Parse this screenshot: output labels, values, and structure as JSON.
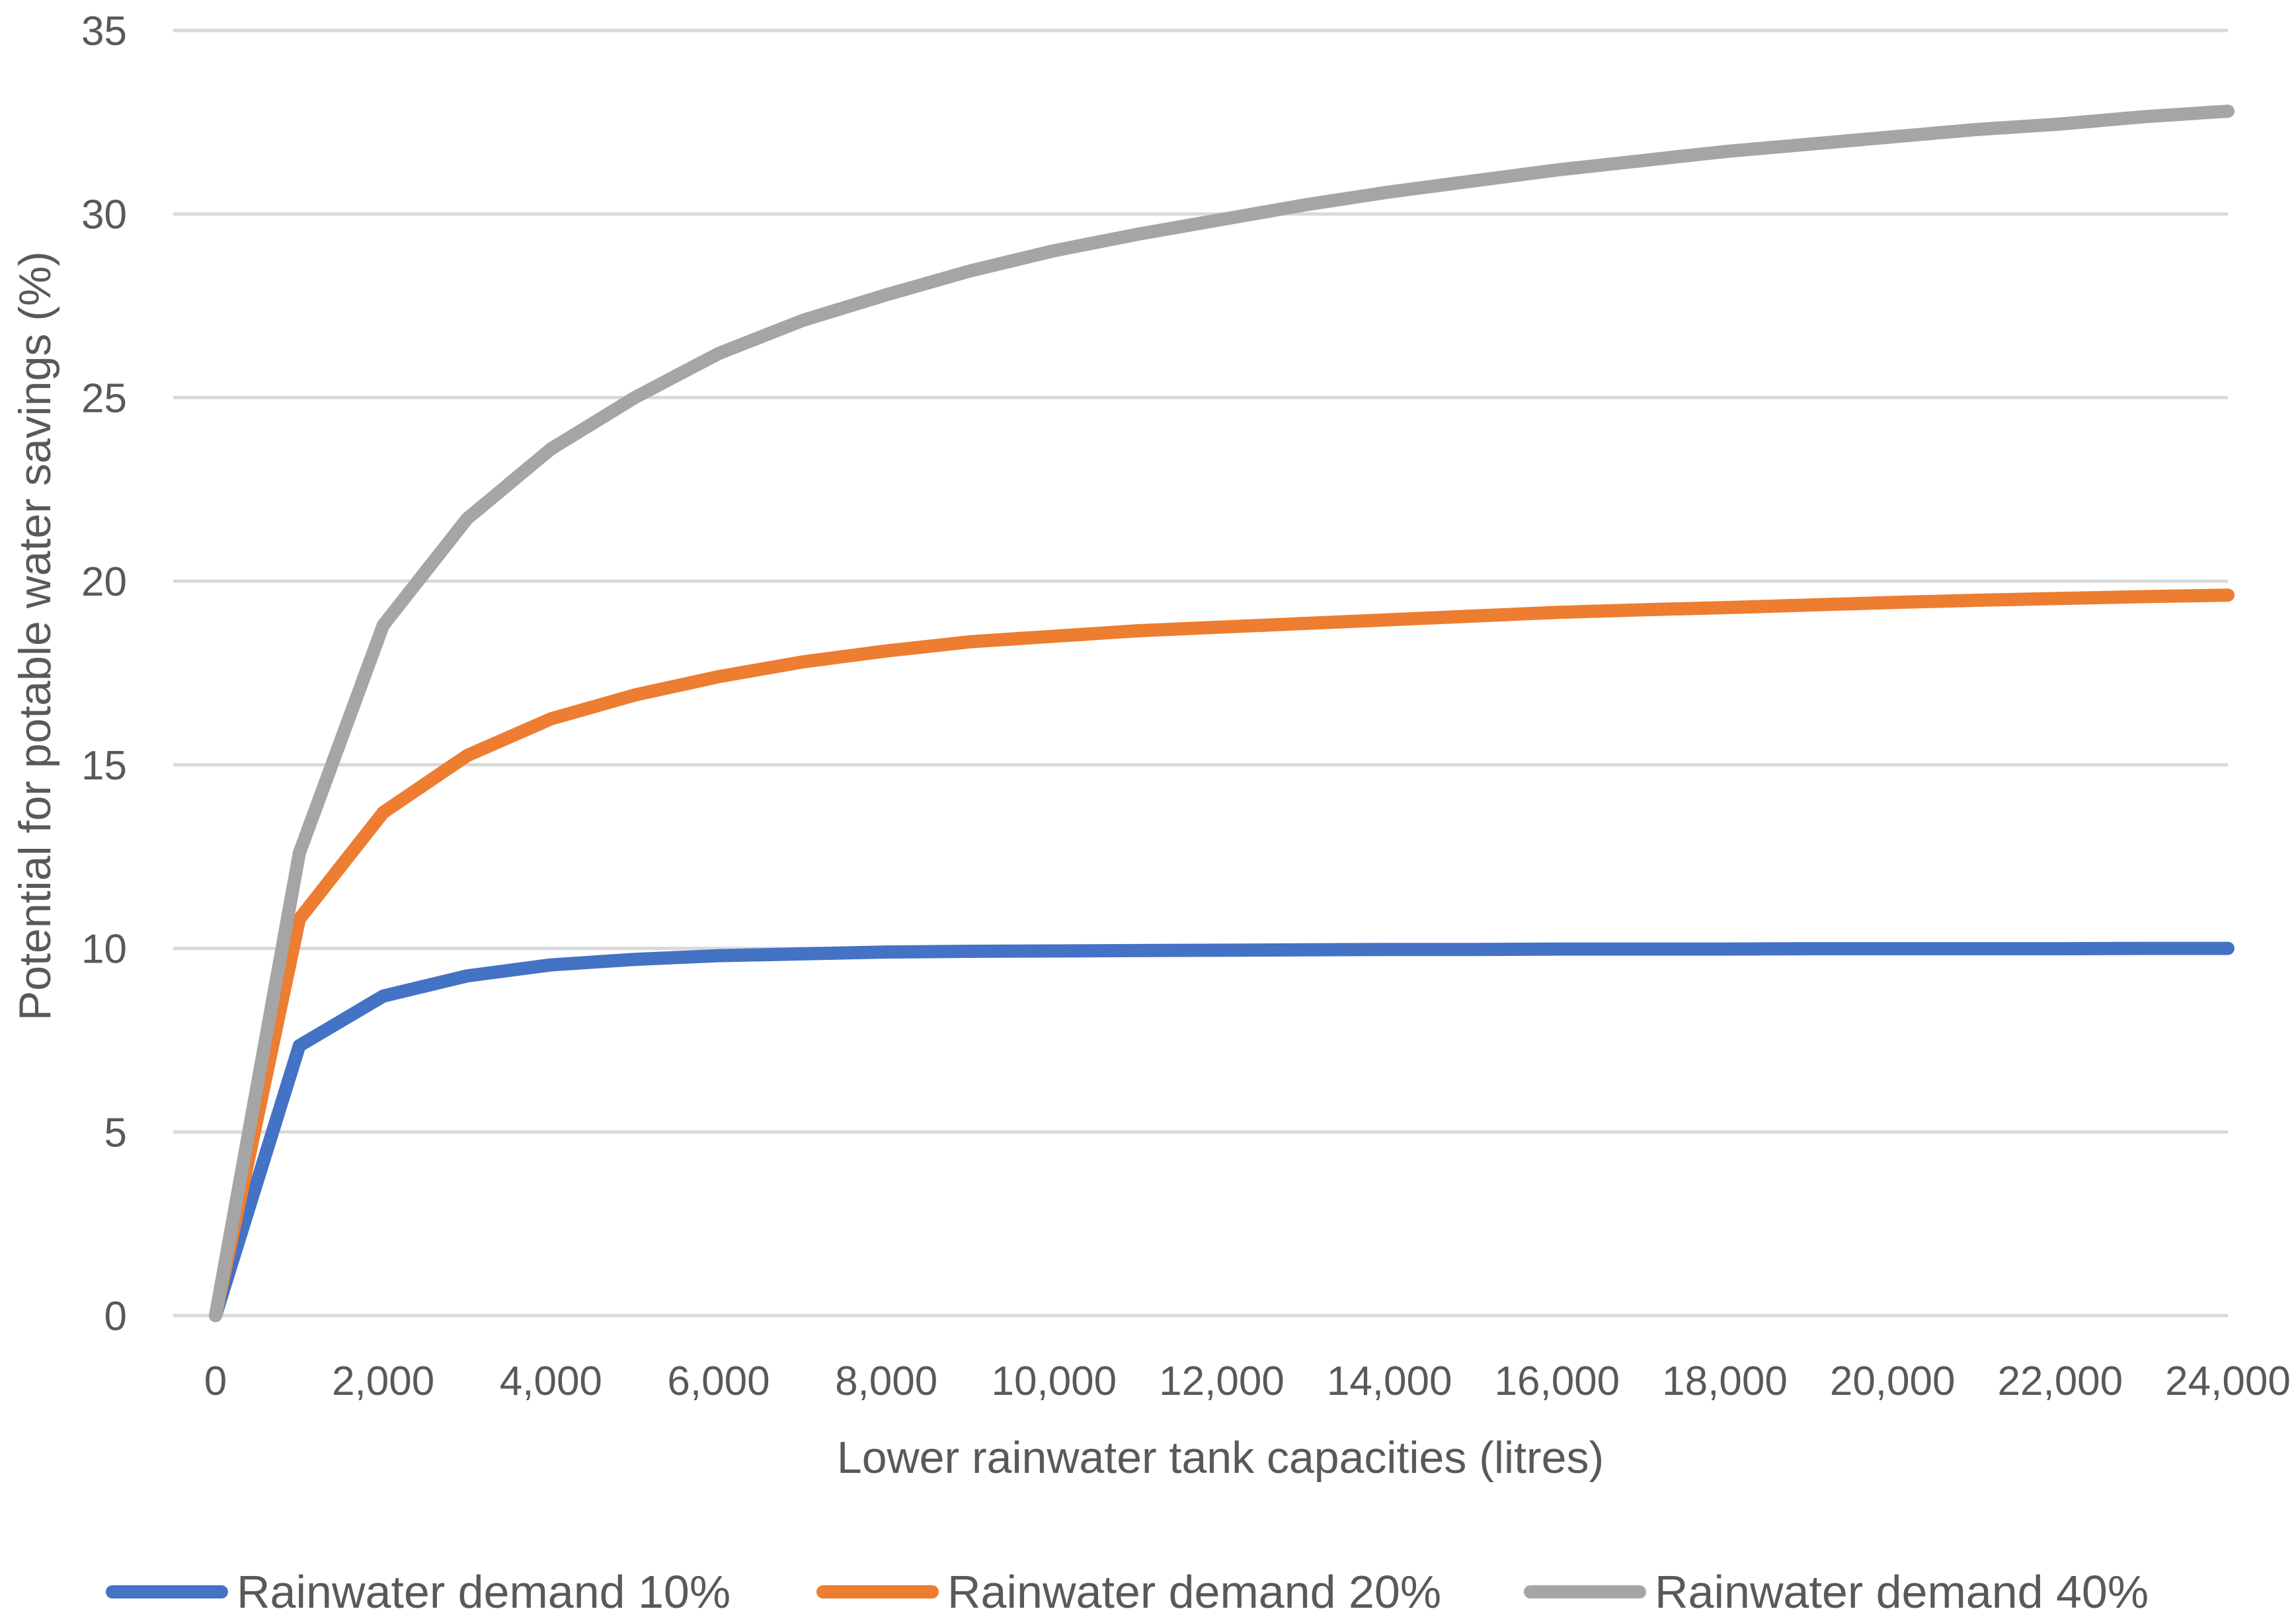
{
  "chart_data": {
    "type": "line",
    "title": "",
    "xlabel": "Lower rainwater tank capacities (litres)",
    "ylabel": "Potential for potable water savings (%)",
    "xlim": [
      0,
      24000
    ],
    "ylim": [
      0,
      35
    ],
    "x_ticks": [
      0,
      2000,
      4000,
      6000,
      8000,
      10000,
      12000,
      14000,
      16000,
      18000,
      20000,
      22000,
      24000
    ],
    "x_tick_labels": [
      "0",
      "2,000",
      "4,000",
      "6,000",
      "8,000",
      "10,000",
      "12,000",
      "14,000",
      "16,000",
      "18,000",
      "20,000",
      "22,000",
      "24,000"
    ],
    "y_ticks": [
      0,
      5,
      10,
      15,
      20,
      25,
      30,
      35
    ],
    "y_tick_labels": [
      "0",
      "5",
      "10",
      "15",
      "20",
      "25",
      "30",
      "35"
    ],
    "grid": true,
    "legend_position": "bottom",
    "x": [
      0,
      1000,
      2000,
      3000,
      4000,
      5000,
      6000,
      7000,
      8000,
      9000,
      10000,
      11000,
      12000,
      13000,
      14000,
      15000,
      16000,
      17000,
      18000,
      19000,
      20000,
      21000,
      22000,
      23000,
      24000
    ],
    "series": [
      {
        "name": "Rainwater demand 10%",
        "color": "#4472c4",
        "values": [
          0,
          7.35,
          8.7,
          9.25,
          9.55,
          9.7,
          9.8,
          9.85,
          9.9,
          9.92,
          9.93,
          9.94,
          9.95,
          9.96,
          9.97,
          9.97,
          9.98,
          9.98,
          9.98,
          9.99,
          9.99,
          9.99,
          9.99,
          10.0,
          10.0
        ]
      },
      {
        "name": "Rainwater demand 20%",
        "color": "#ed7d31",
        "values": [
          0,
          10.8,
          13.7,
          15.25,
          16.25,
          16.9,
          17.4,
          17.8,
          18.1,
          18.35,
          18.5,
          18.65,
          18.75,
          18.85,
          18.95,
          19.05,
          19.15,
          19.22,
          19.28,
          19.35,
          19.42,
          19.48,
          19.53,
          19.58,
          19.62
        ]
      },
      {
        "name": "Rainwater demand 40%",
        "color": "#a5a5a5",
        "values": [
          0,
          12.6,
          18.8,
          21.7,
          23.6,
          25.0,
          26.2,
          27.1,
          27.8,
          28.45,
          29.0,
          29.45,
          29.85,
          30.25,
          30.6,
          30.9,
          31.2,
          31.45,
          31.7,
          31.9,
          32.1,
          32.3,
          32.45,
          32.65,
          32.8
        ]
      }
    ]
  }
}
